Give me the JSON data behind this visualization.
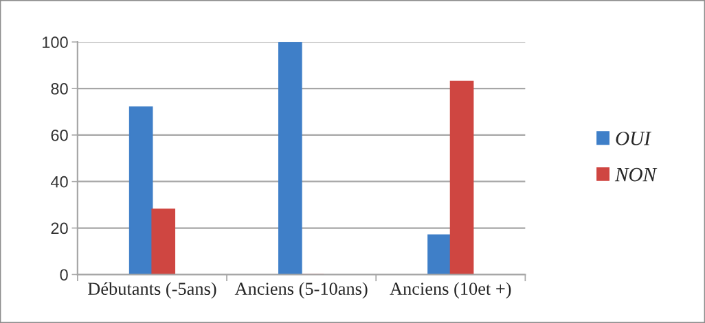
{
  "chart_data": {
    "type": "bar",
    "categories": [
      "Débutants (-5ans)",
      "Anciens (5-10ans)",
      "Anciens (10et +)"
    ],
    "series": [
      {
        "name": "OUI",
        "color": "#3f7fc8",
        "values": [
          72,
          100,
          17
        ]
      },
      {
        "name": "NON",
        "color": "#cf4641",
        "values": [
          28,
          0,
          83
        ]
      }
    ],
    "ylim": [
      0,
      100
    ],
    "yticks": [
      0,
      20,
      40,
      60,
      80,
      100
    ],
    "grid": "y",
    "legend": "right"
  }
}
